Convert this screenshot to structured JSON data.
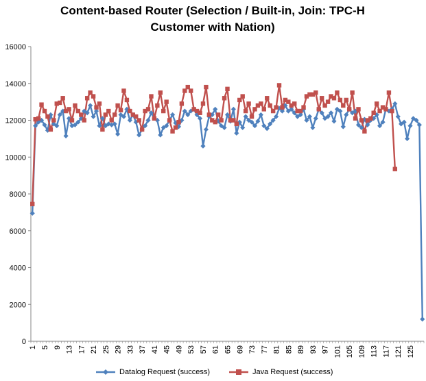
{
  "chart_data": {
    "type": "line",
    "title_line1": "Content-based  Router (Selection / Built-in, Join: TPC-H",
    "title_line2": "Customer with Nation)",
    "xlabel": "",
    "ylabel": "",
    "ylim": [
      0,
      16000
    ],
    "y_ticks": [
      0,
      2000,
      4000,
      6000,
      8000,
      10000,
      12000,
      14000,
      16000
    ],
    "x_tick_labels": [
      "1",
      "5",
      "9",
      "13",
      "17",
      "21",
      "25",
      "29",
      "33",
      "37",
      "41",
      "45",
      "49",
      "53",
      "57",
      "61",
      "65",
      "69",
      "73",
      "77",
      "81",
      "85",
      "89",
      "93",
      "97",
      "101",
      "105",
      "109",
      "113",
      "117",
      "121",
      "125"
    ],
    "grid": false,
    "legend_position": "bottom",
    "series": [
      {
        "name": "Datalog Request (success)",
        "color": "#4F81BD",
        "marker": "diamond",
        "values": [
          6950,
          11700,
          11900,
          12000,
          11750,
          11450,
          12300,
          11800,
          11700,
          12300,
          12500,
          11150,
          12100,
          11700,
          11750,
          11900,
          12100,
          12500,
          12400,
          12800,
          12200,
          12500,
          11700,
          12100,
          11700,
          11800,
          11750,
          11800,
          11250,
          12300,
          12200,
          12600,
          12000,
          12300,
          11900,
          11200,
          11500,
          11700,
          12000,
          12400,
          12100,
          12000,
          11200,
          11600,
          11700,
          12000,
          12300,
          11850,
          11650,
          12000,
          12500,
          12300,
          12500,
          12600,
          12300,
          12100,
          10600,
          11500,
          12200,
          12300,
          12600,
          11950,
          11700,
          11600,
          12300,
          11950,
          12600,
          11300,
          11900,
          11600,
          12200,
          12000,
          11900,
          11700,
          11950,
          12300,
          11700,
          11550,
          11800,
          12000,
          12200,
          12650,
          12500,
          12800,
          12500,
          12600,
          12400,
          12200,
          12300,
          12600,
          12000,
          12200,
          11600,
          12100,
          12600,
          12400,
          12100,
          12200,
          12400,
          11950,
          12600,
          12500,
          11650,
          12300,
          12600,
          12400,
          12500,
          11750,
          11600,
          12050,
          11750,
          12000,
          12100,
          12300,
          11700,
          11900,
          12600,
          12500,
          12600,
          12900,
          12200,
          11800,
          11900,
          11000,
          11700,
          12100,
          12000,
          11750,
          1200
        ]
      },
      {
        "name": "Java Request (success)",
        "color": "#C0504D",
        "marker": "square",
        "values": [
          7450,
          12050,
          12100,
          12850,
          12500,
          12200,
          11500,
          12000,
          12900,
          12950,
          13200,
          12500,
          12600,
          12000,
          12800,
          12500,
          12300,
          12000,
          13200,
          13500,
          13300,
          12700,
          12900,
          11500,
          12300,
          12500,
          12000,
          12300,
          12800,
          12550,
          13600,
          13100,
          12500,
          12300,
          12200,
          12000,
          11500,
          12500,
          12600,
          13300,
          12100,
          12800,
          13500,
          12500,
          13000,
          12000,
          11400,
          11600,
          11900,
          12900,
          13600,
          13800,
          13600,
          12600,
          12500,
          12400,
          12900,
          13800,
          12300,
          12000,
          11900,
          12300,
          12000,
          13200,
          13700,
          12000,
          12000,
          11800,
          13100,
          13300,
          12500,
          12900,
          12200,
          12600,
          12800,
          12900,
          12600,
          13200,
          12800,
          12500,
          12700,
          13900,
          12700,
          13100,
          13000,
          12800,
          12900,
          12500,
          12500,
          12700,
          13300,
          13400,
          13400,
          13500,
          12600,
          13200,
          12800,
          13000,
          13300,
          13200,
          13500,
          13100,
          12800,
          13100,
          12600,
          13500,
          12100,
          12600,
          12000,
          11400,
          12000,
          12100,
          12400,
          12900,
          12500,
          12700,
          12600,
          13500,
          12500,
          9350
        ]
      }
    ]
  }
}
